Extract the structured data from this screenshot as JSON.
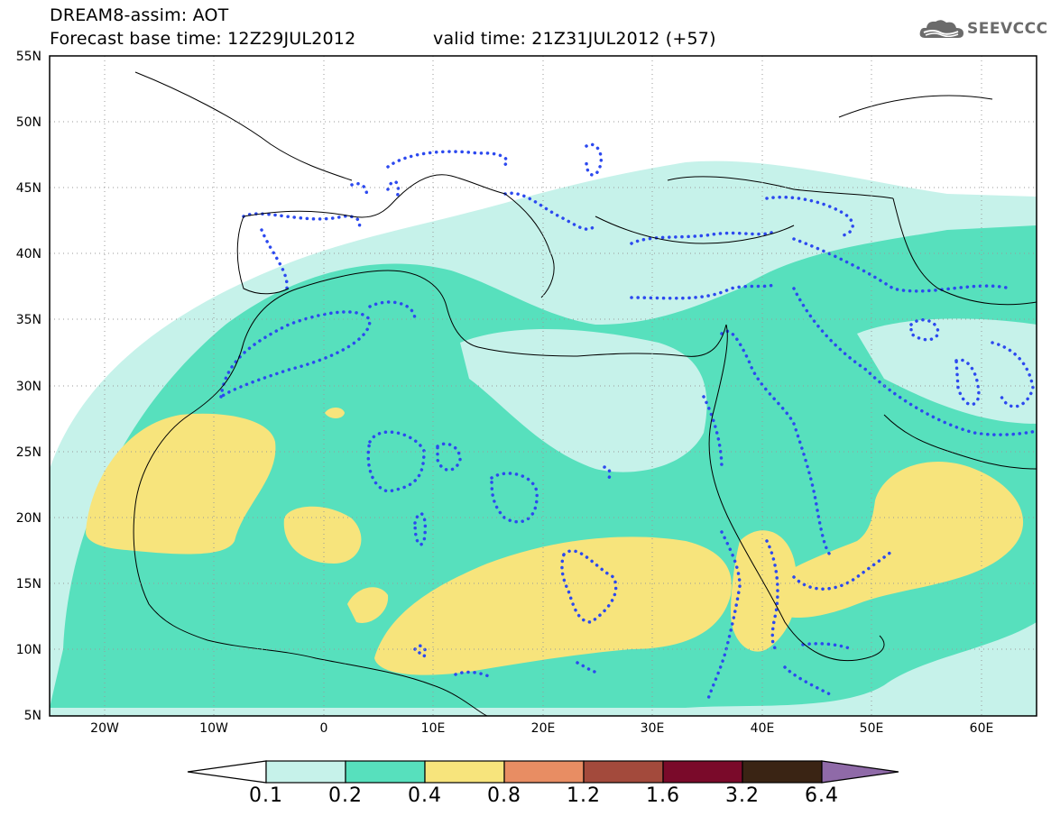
{
  "title": {
    "line1": "DREAM8-assim: AOT",
    "base_time": "Forecast base time: 12Z29JUL2012",
    "valid_time": "valid time: 21Z31JUL2012 (+57)"
  },
  "logo": {
    "text": "SEEVCCC",
    "icon": "cloud-icon"
  },
  "map": {
    "lon_range": [
      -25,
      65
    ],
    "lat_range": [
      5,
      55
    ],
    "lat_labels": [
      "55N",
      "50N",
      "45N",
      "40N",
      "35N",
      "30N",
      "25N",
      "20N",
      "15N",
      "10N",
      "5N"
    ],
    "lon_labels": [
      "20W",
      "10W",
      "0",
      "10E",
      "20E",
      "30E",
      "40E",
      "50E",
      "60E"
    ],
    "grid": true,
    "grid_style": "dotted"
  },
  "colorbar": {
    "levels": [
      "0.1",
      "0.2",
      "0.4",
      "0.8",
      "1.2",
      "1.6",
      "3.2",
      "6.4"
    ],
    "colors": [
      "#ffffff",
      "#c6f2ea",
      "#57e0bd",
      "#f7e47c",
      "#e88d63",
      "#a34a3c",
      "#7a0a2a",
      "#3a2414",
      "#8f6aa8"
    ],
    "extend": "both"
  },
  "legend_colors": {
    "aot_0_1_to_0_2": "#c6f2ea",
    "aot_0_2_to_0_4": "#57e0bd",
    "aot_0_4_to_0_8": "#f7e47c",
    "contour_line": "#2c49ef"
  }
}
